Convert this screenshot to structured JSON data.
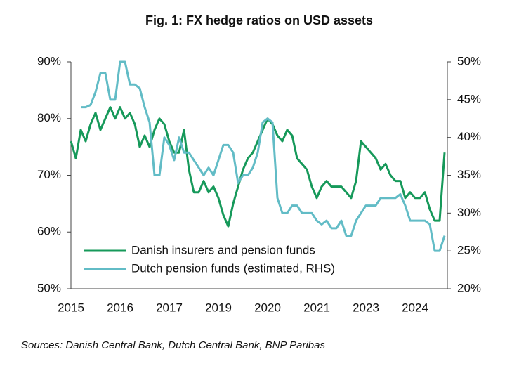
{
  "chart_data": {
    "type": "line",
    "title": "Fig. 1: FX hedge ratios on USD assets",
    "source": "Sources: Danish Central Bank, Dutch Central Bank, BNP Paribas",
    "categories": [
      "2015",
      null,
      null,
      null,
      null,
      null,
      null,
      null,
      null,
      null,
      "2016",
      null,
      null,
      null,
      null,
      null,
      null,
      null,
      null,
      null,
      "2017",
      null,
      null,
      null,
      null,
      null,
      null,
      null,
      null,
      null,
      "2019",
      null,
      null,
      null,
      null,
      null,
      null,
      null,
      null,
      null,
      "2020",
      null,
      null,
      null,
      null,
      null,
      null,
      null,
      null,
      null,
      "2021",
      null,
      null,
      null,
      null,
      null,
      null,
      null,
      null,
      null,
      "2023",
      null,
      null,
      null,
      null,
      null,
      null,
      null,
      null,
      null,
      "2024",
      null,
      null,
      null,
      null,
      null,
      null
    ],
    "series": [
      {
        "name": "Danish insurers and pension funds",
        "color": "#16995a",
        "values": [
          76,
          73,
          78,
          76,
          79,
          81,
          78,
          80,
          82,
          80,
          82,
          80,
          81,
          79,
          75,
          77,
          75,
          78,
          80,
          79,
          76,
          74,
          74,
          78,
          71,
          67,
          67,
          69,
          67,
          68,
          66,
          63,
          61,
          65,
          68,
          71,
          73,
          74,
          76,
          78,
          80,
          79,
          77,
          76,
          78,
          77,
          73,
          72,
          71,
          68,
          66,
          68,
          69,
          68,
          68,
          68,
          67,
          66,
          69,
          76,
          75,
          74,
          73,
          71,
          72,
          70,
          69,
          69,
          66,
          67,
          66,
          66,
          67,
          64,
          62,
          62,
          74
        ]
      },
      {
        "name": "Dutch pension funds (estimated, RHS)",
        "color": "#62bcc6",
        "axis": "y2",
        "values": [
          null,
          null,
          44,
          44,
          44.3,
          46,
          48.5,
          48.5,
          45,
          45,
          50,
          50,
          47,
          47,
          46.5,
          44,
          42,
          35,
          35,
          40,
          39,
          37,
          40,
          38,
          38,
          37,
          36,
          35,
          36,
          35,
          37,
          39,
          39,
          38,
          34,
          35,
          35,
          36,
          38,
          42,
          42.5,
          42,
          32,
          30,
          30,
          31,
          31,
          30,
          30,
          30,
          29,
          28.5,
          29,
          28,
          28,
          29,
          27,
          27,
          29,
          30,
          31,
          31,
          31,
          32,
          32,
          32,
          32,
          32.5,
          31,
          29,
          29,
          29,
          29,
          28.5,
          25,
          25,
          27
        ]
      }
    ],
    "ylim": [
      50,
      90
    ],
    "yticks": [
      {
        "value": 50,
        "label": "50%"
      },
      {
        "value": 60,
        "label": "60%"
      },
      {
        "value": 70,
        "label": "70%"
      },
      {
        "value": 80,
        "label": "80%"
      },
      {
        "value": 90,
        "label": "90%"
      }
    ],
    "y2lim": [
      20,
      50
    ],
    "y2ticks": [
      {
        "value": 20,
        "label": "20%"
      },
      {
        "value": 25,
        "label": "25%"
      },
      {
        "value": 30,
        "label": "30%"
      },
      {
        "value": 35,
        "label": "35%"
      },
      {
        "value": 40,
        "label": "40%"
      },
      {
        "value": 45,
        "label": "45%"
      },
      {
        "value": 50,
        "label": "50%"
      }
    ],
    "legend": "bottom-left"
  }
}
